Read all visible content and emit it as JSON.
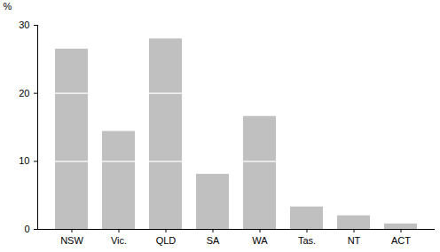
{
  "chart_data": {
    "type": "bar",
    "categories": [
      "NSW",
      "Vic.",
      "QLD",
      "SA",
      "WA",
      "Tas.",
      "NT",
      "ACT"
    ],
    "values": [
      26.5,
      14.4,
      28.0,
      8.1,
      16.6,
      3.3,
      2.0,
      0.8
    ],
    "color": "#c0c0c0",
    "ylabel": "%",
    "ylim": [
      0,
      30
    ],
    "yticks": [
      0,
      10,
      20,
      30
    ],
    "grid": true
  }
}
